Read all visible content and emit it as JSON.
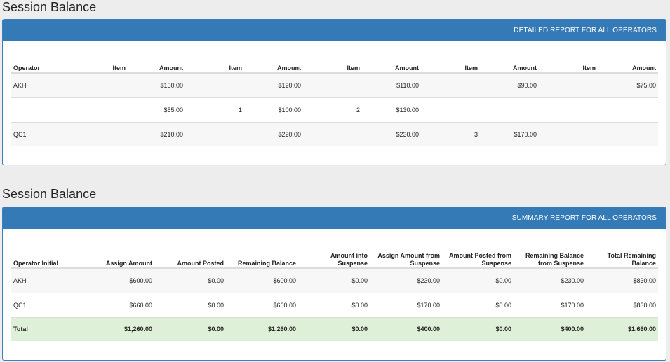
{
  "detailed": {
    "title": "Session Balance",
    "header": "DETAILED REPORT FOR ALL OPERATORS",
    "columns": [
      "Operator",
      "Item",
      "Amount",
      "Item",
      "Amount",
      "Item",
      "Amount",
      "Item",
      "Amount",
      "Item",
      "Amount"
    ],
    "rows": [
      [
        "AKH",
        "",
        "$150.00",
        "",
        "$120.00",
        "",
        "$110.00",
        "",
        "$90.00",
        "",
        "$75.00"
      ],
      [
        "",
        "",
        "$55.00",
        "1",
        "$100.00",
        "2",
        "$130.00",
        "",
        "",
        "",
        ""
      ],
      [
        "QC1",
        "",
        "$210.00",
        "",
        "$220.00",
        "",
        "$230.00",
        "3",
        "$170.00",
        "",
        ""
      ]
    ]
  },
  "summary": {
    "title": "Session Balance",
    "header": "SUMMARY REPORT FOR ALL OPERATORS",
    "columns": [
      [
        "Operator Initial"
      ],
      [
        "Assign Amount"
      ],
      [
        "Amount Posted"
      ],
      [
        "Remaining Balance"
      ],
      [
        "Amount into",
        "Suspense"
      ],
      [
        "Assign Amount from",
        "Suspense"
      ],
      [
        "Amount Posted from",
        "Suspense"
      ],
      [
        "Remaining Balance",
        "from Suspense"
      ],
      [
        "Total Remaining",
        "Balance"
      ]
    ],
    "rows": [
      [
        "AKH",
        "$600.00",
        "$0.00",
        "$600.00",
        "$0.00",
        "$230.00",
        "$0.00",
        "$230.00",
        "$830.00"
      ],
      [
        "QC1",
        "$660.00",
        "$0.00",
        "$660.00",
        "$0.00",
        "$170.00",
        "$0.00",
        "$170.00",
        "$830.00"
      ]
    ],
    "total": [
      "Total",
      "$1,260.00",
      "$0.00",
      "$1,260.00",
      "$0.00",
      "$400.00",
      "$0.00",
      "$400.00",
      "$1,660.00"
    ]
  },
  "colors": {
    "panel_header": "#337ab7",
    "total_row": "#dff0d8",
    "page_bg": "#ededed"
  }
}
